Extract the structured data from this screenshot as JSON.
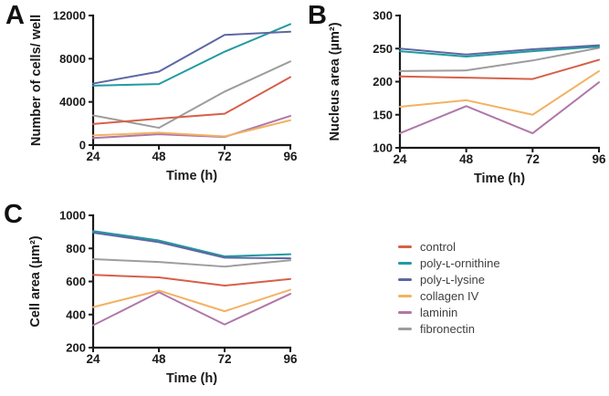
{
  "panels": [
    {
      "letter": "A"
    },
    {
      "letter": "B"
    },
    {
      "letter": "C"
    }
  ],
  "legend": {
    "items": [
      {
        "label": "control",
        "color": "#d6604a"
      },
      {
        "label": "poly-ʟ-ornithine",
        "color": "#219aa0"
      },
      {
        "label": "poly-ʟ-lysine",
        "color": "#5c68a2"
      },
      {
        "label": "collagen IV",
        "color": "#f2b263"
      },
      {
        "label": "laminin",
        "color": "#b077a8"
      },
      {
        "label": "fibronectin",
        "color": "#9d9d9d"
      }
    ]
  },
  "chart_data": [
    {
      "type": "line",
      "panel": "A",
      "title": "",
      "x": [
        24,
        48,
        72,
        96
      ],
      "xlabel": "Time (h)",
      "ylabel": "Number of cells/ well",
      "ylim": [
        0,
        12000
      ],
      "yticks": [
        0,
        4000,
        8000,
        12000
      ],
      "grid": false,
      "series": [
        {
          "name": "control",
          "values": [
            1950,
            2450,
            2900,
            6300
          ]
        },
        {
          "name": "poly-ʟ-ornithine",
          "values": [
            5500,
            5650,
            8650,
            11200
          ]
        },
        {
          "name": "poly-ʟ-lysine",
          "values": [
            5700,
            6800,
            10200,
            10500
          ]
        },
        {
          "name": "collagen IV",
          "values": [
            900,
            1150,
            800,
            2300
          ]
        },
        {
          "name": "laminin",
          "values": [
            650,
            1000,
            750,
            2700
          ]
        },
        {
          "name": "fibronectin",
          "values": [
            2750,
            1600,
            4950,
            7750
          ]
        }
      ]
    },
    {
      "type": "line",
      "panel": "B",
      "title": "",
      "x": [
        24,
        48,
        72,
        96
      ],
      "xlabel": "Time (h)",
      "ylabel": "Nucleus area (µm²)",
      "ylim": [
        100,
        300
      ],
      "yticks": [
        100,
        150,
        200,
        250,
        300
      ],
      "grid": false,
      "series": [
        {
          "name": "control",
          "values": [
            208,
            206,
            204,
            233
          ]
        },
        {
          "name": "poly-ʟ-ornithine",
          "values": [
            246,
            238,
            246,
            253
          ]
        },
        {
          "name": "poly-ʟ-lysine",
          "values": [
            250,
            241,
            249,
            255
          ]
        },
        {
          "name": "collagen IV",
          "values": [
            162,
            172,
            150,
            216
          ]
        },
        {
          "name": "laminin",
          "values": [
            122,
            163,
            122,
            199
          ]
        },
        {
          "name": "fibronectin",
          "values": [
            216,
            217,
            232,
            251
          ]
        }
      ]
    },
    {
      "type": "line",
      "panel": "C",
      "title": "",
      "x": [
        24,
        48,
        72,
        96
      ],
      "xlabel": "Time (h)",
      "ylabel": "Cell area (µm²)",
      "ylim": [
        200,
        1000
      ],
      "yticks": [
        200,
        400,
        600,
        800,
        1000
      ],
      "grid": false,
      "series": [
        {
          "name": "control",
          "values": [
            640,
            625,
            575,
            615
          ]
        },
        {
          "name": "poly-ʟ-ornithine",
          "values": [
            905,
            848,
            752,
            765
          ]
        },
        {
          "name": "poly-ʟ-lysine",
          "values": [
            895,
            838,
            744,
            740
          ]
        },
        {
          "name": "collagen IV",
          "values": [
            445,
            545,
            420,
            550
          ]
        },
        {
          "name": "laminin",
          "values": [
            335,
            535,
            340,
            525
          ]
        },
        {
          "name": "fibronectin",
          "values": [
            735,
            718,
            690,
            728
          ]
        }
      ]
    }
  ]
}
